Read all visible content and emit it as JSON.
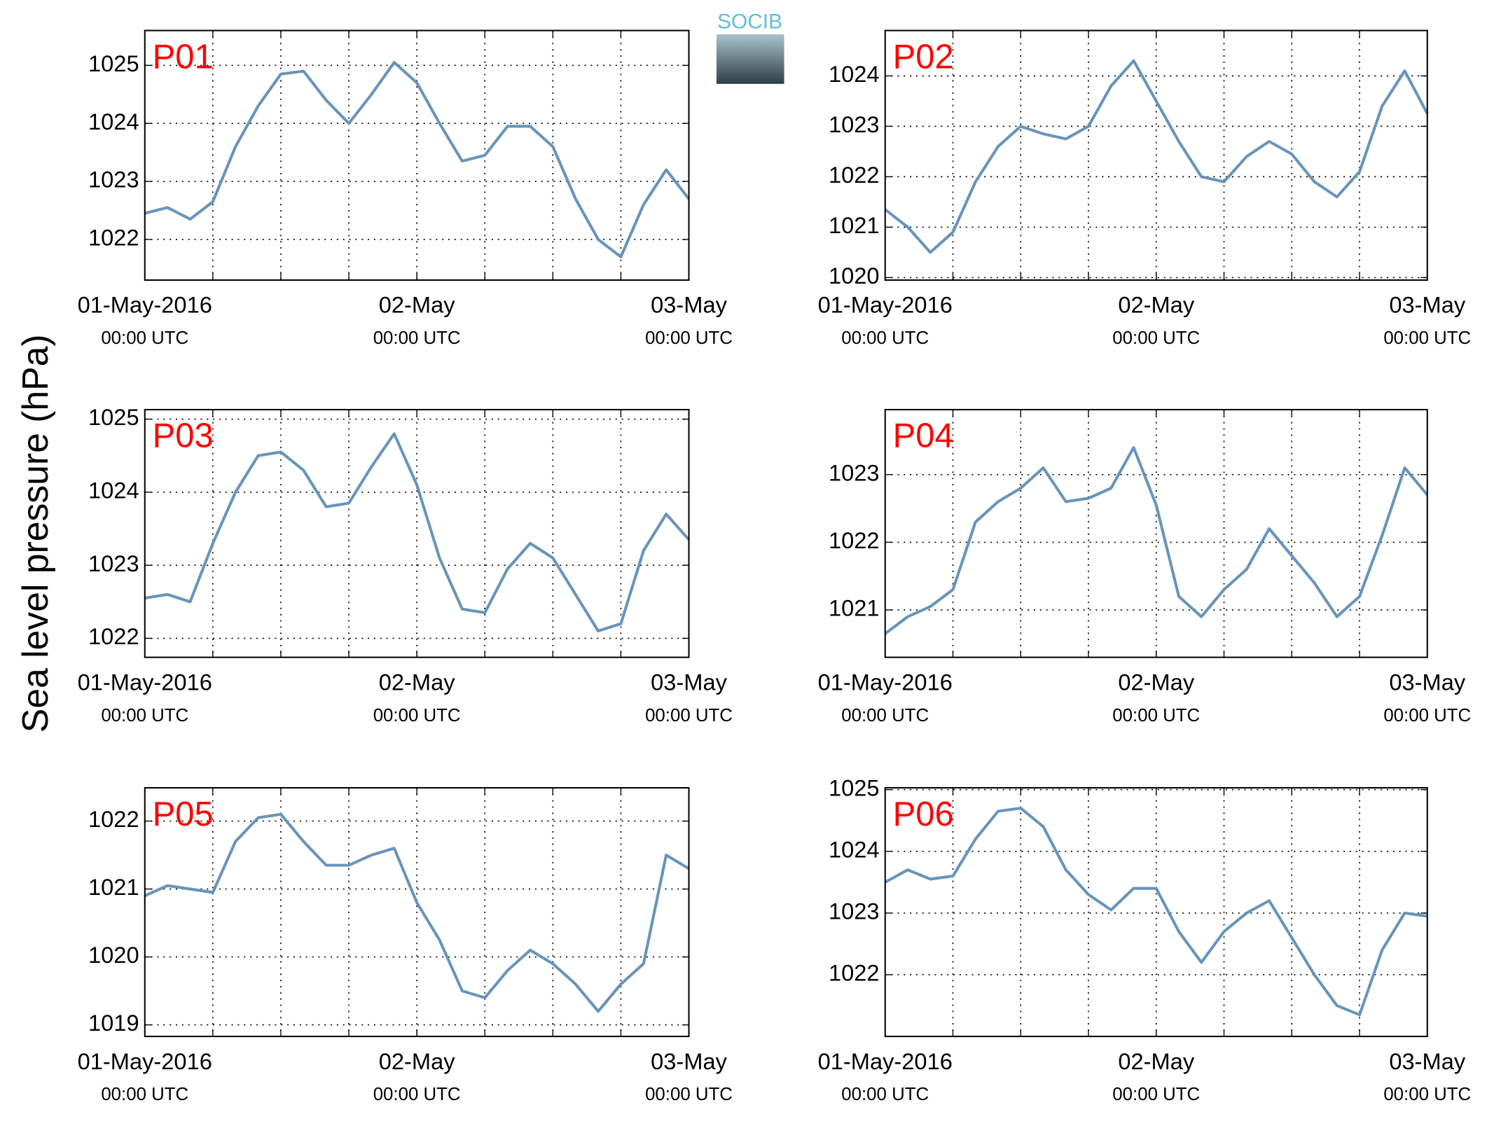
{
  "logo": "SOCIB",
  "ylabel": "Sea level pressure (hPa)",
  "chart_data": [
    {
      "type": "line",
      "panel": "P01",
      "color": "#6894bb",
      "grid": true,
      "xlim": [
        "2016-05-01T00:00Z",
        "2016-05-03T00:00Z"
      ],
      "xticks": [
        {
          "value": "2016-05-01T00:00Z",
          "label": "01-May-2016",
          "sublabel": "00:00 UTC"
        },
        {
          "value": "2016-05-02T00:00Z",
          "label": "02-May",
          "sublabel": "00:00 UTC"
        },
        {
          "value": "2016-05-03T00:00Z",
          "label": "03-May",
          "sublabel": "00:00 UTC"
        }
      ],
      "xgrid": [
        "2016-05-01T06:00Z",
        "2016-05-01T12:00Z",
        "2016-05-01T18:00Z",
        "2016-05-02T00:00Z",
        "2016-05-02T06:00Z",
        "2016-05-02T12:00Z",
        "2016-05-02T18:00Z"
      ],
      "ylim": [
        1021.3,
        1025.6
      ],
      "yticks": [
        1022,
        1023,
        1024,
        1025
      ],
      "x": [
        "2016-05-01T00:00Z",
        "2016-05-01T02:00Z",
        "2016-05-01T04:00Z",
        "2016-05-01T06:00Z",
        "2016-05-01T08:00Z",
        "2016-05-01T10:00Z",
        "2016-05-01T12:00Z",
        "2016-05-01T14:00Z",
        "2016-05-01T16:00Z",
        "2016-05-01T18:00Z",
        "2016-05-01T20:00Z",
        "2016-05-01T22:00Z",
        "2016-05-02T00:00Z",
        "2016-05-02T02:00Z",
        "2016-05-02T04:00Z",
        "2016-05-02T06:00Z",
        "2016-05-02T08:00Z",
        "2016-05-02T10:00Z",
        "2016-05-02T12:00Z",
        "2016-05-02T14:00Z",
        "2016-05-02T16:00Z",
        "2016-05-02T18:00Z",
        "2016-05-02T20:00Z",
        "2016-05-02T22:00Z",
        "2016-05-03T00:00Z"
      ],
      "values": [
        1022.45,
        1022.55,
        1022.35,
        1022.65,
        1023.6,
        1024.3,
        1024.85,
        1024.9,
        1024.4,
        1024.0,
        1024.5,
        1025.05,
        1024.7,
        1024.0,
        1023.35,
        1023.45,
        1023.95,
        1023.95,
        1023.6,
        1022.7,
        1022.0,
        1021.7,
        1022.6,
        1023.2,
        1022.7
      ]
    },
    {
      "type": "line",
      "panel": "P02",
      "color": "#6894bb",
      "grid": true,
      "xlim": [
        "2016-05-01T00:00Z",
        "2016-05-03T00:00Z"
      ],
      "xticks": [
        {
          "value": "2016-05-01T00:00Z",
          "label": "01-May-2016",
          "sublabel": "00:00 UTC"
        },
        {
          "value": "2016-05-02T00:00Z",
          "label": "02-May",
          "sublabel": "00:00 UTC"
        },
        {
          "value": "2016-05-03T00:00Z",
          "label": "03-May",
          "sublabel": "00:00 UTC"
        }
      ],
      "xgrid": [
        "2016-05-01T06:00Z",
        "2016-05-01T12:00Z",
        "2016-05-01T18:00Z",
        "2016-05-02T00:00Z",
        "2016-05-02T06:00Z",
        "2016-05-02T12:00Z",
        "2016-05-02T18:00Z"
      ],
      "ylim": [
        1019.95,
        1024.9
      ],
      "yticks": [
        1020,
        1021,
        1022,
        1023,
        1024
      ],
      "x": [
        "2016-05-01T00:00Z",
        "2016-05-01T02:00Z",
        "2016-05-01T04:00Z",
        "2016-05-01T06:00Z",
        "2016-05-01T08:00Z",
        "2016-05-01T10:00Z",
        "2016-05-01T12:00Z",
        "2016-05-01T14:00Z",
        "2016-05-01T16:00Z",
        "2016-05-01T18:00Z",
        "2016-05-01T20:00Z",
        "2016-05-01T22:00Z",
        "2016-05-02T00:00Z",
        "2016-05-02T02:00Z",
        "2016-05-02T04:00Z",
        "2016-05-02T06:00Z",
        "2016-05-02T08:00Z",
        "2016-05-02T10:00Z",
        "2016-05-02T12:00Z",
        "2016-05-02T14:00Z",
        "2016-05-02T16:00Z",
        "2016-05-02T18:00Z",
        "2016-05-02T20:00Z",
        "2016-05-02T22:00Z",
        "2016-05-03T00:00Z"
      ],
      "values": [
        1021.35,
        1021.0,
        1020.5,
        1020.9,
        1021.9,
        1022.6,
        1023.0,
        1022.85,
        1022.75,
        1023.0,
        1023.8,
        1024.3,
        1023.5,
        1022.7,
        1022.0,
        1021.9,
        1022.4,
        1022.7,
        1022.45,
        1021.9,
        1021.6,
        1022.1,
        1023.4,
        1024.1,
        1023.25
      ]
    },
    {
      "type": "line",
      "panel": "P03",
      "color": "#6894bb",
      "grid": true,
      "xlim": [
        "2016-05-01T00:00Z",
        "2016-05-03T00:00Z"
      ],
      "xticks": [
        {
          "value": "2016-05-01T00:00Z",
          "label": "01-May-2016",
          "sublabel": "00:00 UTC"
        },
        {
          "value": "2016-05-02T00:00Z",
          "label": "02-May",
          "sublabel": "00:00 UTC"
        },
        {
          "value": "2016-05-03T00:00Z",
          "label": "03-May",
          "sublabel": "00:00 UTC"
        }
      ],
      "xgrid": [
        "2016-05-01T06:00Z",
        "2016-05-01T12:00Z",
        "2016-05-01T18:00Z",
        "2016-05-02T00:00Z",
        "2016-05-02T06:00Z",
        "2016-05-02T12:00Z",
        "2016-05-02T18:00Z"
      ],
      "ylim": [
        1021.74,
        1025.13
      ],
      "yticks": [
        1022,
        1023,
        1024,
        1025
      ],
      "x": [
        "2016-05-01T00:00Z",
        "2016-05-01T02:00Z",
        "2016-05-01T04:00Z",
        "2016-05-01T06:00Z",
        "2016-05-01T08:00Z",
        "2016-05-01T10:00Z",
        "2016-05-01T12:00Z",
        "2016-05-01T14:00Z",
        "2016-05-01T16:00Z",
        "2016-05-01T18:00Z",
        "2016-05-01T20:00Z",
        "2016-05-01T22:00Z",
        "2016-05-02T00:00Z",
        "2016-05-02T02:00Z",
        "2016-05-02T04:00Z",
        "2016-05-02T06:00Z",
        "2016-05-02T08:00Z",
        "2016-05-02T10:00Z",
        "2016-05-02T12:00Z",
        "2016-05-02T14:00Z",
        "2016-05-02T16:00Z",
        "2016-05-02T18:00Z",
        "2016-05-02T20:00Z",
        "2016-05-02T22:00Z",
        "2016-05-03T00:00Z"
      ],
      "values": [
        1022.55,
        1022.6,
        1022.5,
        1023.3,
        1024.0,
        1024.5,
        1024.55,
        1024.3,
        1023.8,
        1023.85,
        1024.35,
        1024.8,
        1024.1,
        1023.1,
        1022.4,
        1022.35,
        1022.95,
        1023.3,
        1023.1,
        1022.6,
        1022.1,
        1022.2,
        1023.2,
        1023.7,
        1023.35
      ]
    },
    {
      "type": "line",
      "panel": "P04",
      "color": "#6894bb",
      "grid": true,
      "xlim": [
        "2016-05-01T00:00Z",
        "2016-05-03T00:00Z"
      ],
      "xticks": [
        {
          "value": "2016-05-01T00:00Z",
          "label": "01-May-2016",
          "sublabel": "00:00 UTC"
        },
        {
          "value": "2016-05-02T00:00Z",
          "label": "02-May",
          "sublabel": "00:00 UTC"
        },
        {
          "value": "2016-05-03T00:00Z",
          "label": "03-May",
          "sublabel": "00:00 UTC"
        }
      ],
      "xgrid": [
        "2016-05-01T06:00Z",
        "2016-05-01T12:00Z",
        "2016-05-01T18:00Z",
        "2016-05-02T00:00Z",
        "2016-05-02T06:00Z",
        "2016-05-02T12:00Z",
        "2016-05-02T18:00Z"
      ],
      "ylim": [
        1020.3,
        1023.96
      ],
      "yticks": [
        1021,
        1022,
        1023
      ],
      "x": [
        "2016-05-01T00:00Z",
        "2016-05-01T02:00Z",
        "2016-05-01T04:00Z",
        "2016-05-01T06:00Z",
        "2016-05-01T08:00Z",
        "2016-05-01T10:00Z",
        "2016-05-01T12:00Z",
        "2016-05-01T14:00Z",
        "2016-05-01T16:00Z",
        "2016-05-01T18:00Z",
        "2016-05-01T20:00Z",
        "2016-05-01T22:00Z",
        "2016-05-02T00:00Z",
        "2016-05-02T02:00Z",
        "2016-05-02T04:00Z",
        "2016-05-02T06:00Z",
        "2016-05-02T08:00Z",
        "2016-05-02T10:00Z",
        "2016-05-02T12:00Z",
        "2016-05-02T14:00Z",
        "2016-05-02T16:00Z",
        "2016-05-02T18:00Z",
        "2016-05-02T20:00Z",
        "2016-05-02T22:00Z",
        "2016-05-03T00:00Z"
      ],
      "values": [
        1020.65,
        1020.9,
        1021.05,
        1021.3,
        1022.3,
        1022.6,
        1022.8,
        1023.1,
        1022.6,
        1022.65,
        1022.8,
        1023.4,
        1022.55,
        1021.2,
        1020.9,
        1021.3,
        1021.6,
        1022.2,
        1021.8,
        1021.4,
        1020.9,
        1021.2,
        1022.1,
        1023.1,
        1022.7
      ]
    },
    {
      "type": "line",
      "panel": "P05",
      "color": "#6894bb",
      "grid": true,
      "xlim": [
        "2016-05-01T00:00Z",
        "2016-05-03T00:00Z"
      ],
      "xticks": [
        {
          "value": "2016-05-01T00:00Z",
          "label": "01-May-2016",
          "sublabel": "00:00 UTC"
        },
        {
          "value": "2016-05-02T00:00Z",
          "label": "02-May",
          "sublabel": "00:00 UTC"
        },
        {
          "value": "2016-05-03T00:00Z",
          "label": "03-May",
          "sublabel": "00:00 UTC"
        }
      ],
      "xgrid": [
        "2016-05-01T06:00Z",
        "2016-05-01T12:00Z",
        "2016-05-01T18:00Z",
        "2016-05-02T00:00Z",
        "2016-05-02T06:00Z",
        "2016-05-02T12:00Z",
        "2016-05-02T18:00Z"
      ],
      "ylim": [
        1018.83,
        1022.49
      ],
      "yticks": [
        1019,
        1020,
        1021,
        1022
      ],
      "x": [
        "2016-05-01T00:00Z",
        "2016-05-01T02:00Z",
        "2016-05-01T04:00Z",
        "2016-05-01T06:00Z",
        "2016-05-01T08:00Z",
        "2016-05-01T10:00Z",
        "2016-05-01T12:00Z",
        "2016-05-01T14:00Z",
        "2016-05-01T16:00Z",
        "2016-05-01T18:00Z",
        "2016-05-01T20:00Z",
        "2016-05-01T22:00Z",
        "2016-05-02T00:00Z",
        "2016-05-02T02:00Z",
        "2016-05-02T04:00Z",
        "2016-05-02T06:00Z",
        "2016-05-02T08:00Z",
        "2016-05-02T10:00Z",
        "2016-05-02T12:00Z",
        "2016-05-02T14:00Z",
        "2016-05-02T16:00Z",
        "2016-05-02T18:00Z",
        "2016-05-02T20:00Z",
        "2016-05-02T22:00Z",
        "2016-05-03T00:00Z"
      ],
      "values": [
        1020.9,
        1021.05,
        1021.0,
        1020.95,
        1021.7,
        1022.05,
        1022.1,
        1021.7,
        1021.35,
        1021.35,
        1021.5,
        1021.6,
        1020.8,
        1020.25,
        1019.5,
        1019.4,
        1019.8,
        1020.1,
        1019.9,
        1019.6,
        1019.2,
        1019.6,
        1019.9,
        1021.5,
        1021.3
      ]
    },
    {
      "type": "line",
      "panel": "P06",
      "color": "#6894bb",
      "grid": true,
      "xlim": [
        "2016-05-01T00:00Z",
        "2016-05-03T00:00Z"
      ],
      "xticks": [
        {
          "value": "2016-05-01T00:00Z",
          "label": "01-May-2016",
          "sublabel": "00:00 UTC"
        },
        {
          "value": "2016-05-02T00:00Z",
          "label": "02-May",
          "sublabel": "00:00 UTC"
        },
        {
          "value": "2016-05-03T00:00Z",
          "label": "03-May",
          "sublabel": "00:00 UTC"
        }
      ],
      "xgrid": [
        "2016-05-01T06:00Z",
        "2016-05-01T12:00Z",
        "2016-05-01T18:00Z",
        "2016-05-02T00:00Z",
        "2016-05-02T06:00Z",
        "2016-05-02T12:00Z",
        "2016-05-02T18:00Z"
      ],
      "ylim": [
        1021.0,
        1025.03
      ],
      "yticks": [
        1022,
        1023,
        1024,
        1025
      ],
      "x": [
        "2016-05-01T00:00Z",
        "2016-05-01T02:00Z",
        "2016-05-01T04:00Z",
        "2016-05-01T06:00Z",
        "2016-05-01T08:00Z",
        "2016-05-01T10:00Z",
        "2016-05-01T12:00Z",
        "2016-05-01T14:00Z",
        "2016-05-01T16:00Z",
        "2016-05-01T18:00Z",
        "2016-05-01T20:00Z",
        "2016-05-01T22:00Z",
        "2016-05-02T00:00Z",
        "2016-05-02T02:00Z",
        "2016-05-02T04:00Z",
        "2016-05-02T06:00Z",
        "2016-05-02T08:00Z",
        "2016-05-02T10:00Z",
        "2016-05-02T12:00Z",
        "2016-05-02T14:00Z",
        "2016-05-02T16:00Z",
        "2016-05-02T18:00Z",
        "2016-05-02T20:00Z",
        "2016-05-02T22:00Z",
        "2016-05-03T00:00Z"
      ],
      "values": [
        1023.5,
        1023.7,
        1023.55,
        1023.6,
        1024.2,
        1024.65,
        1024.7,
        1024.4,
        1023.7,
        1023.3,
        1023.05,
        1023.4,
        1023.4,
        1022.7,
        1022.2,
        1022.7,
        1023.0,
        1023.2,
        1022.6,
        1022.0,
        1021.5,
        1021.35,
        1022.4,
        1023.0,
        1022.95
      ]
    }
  ]
}
